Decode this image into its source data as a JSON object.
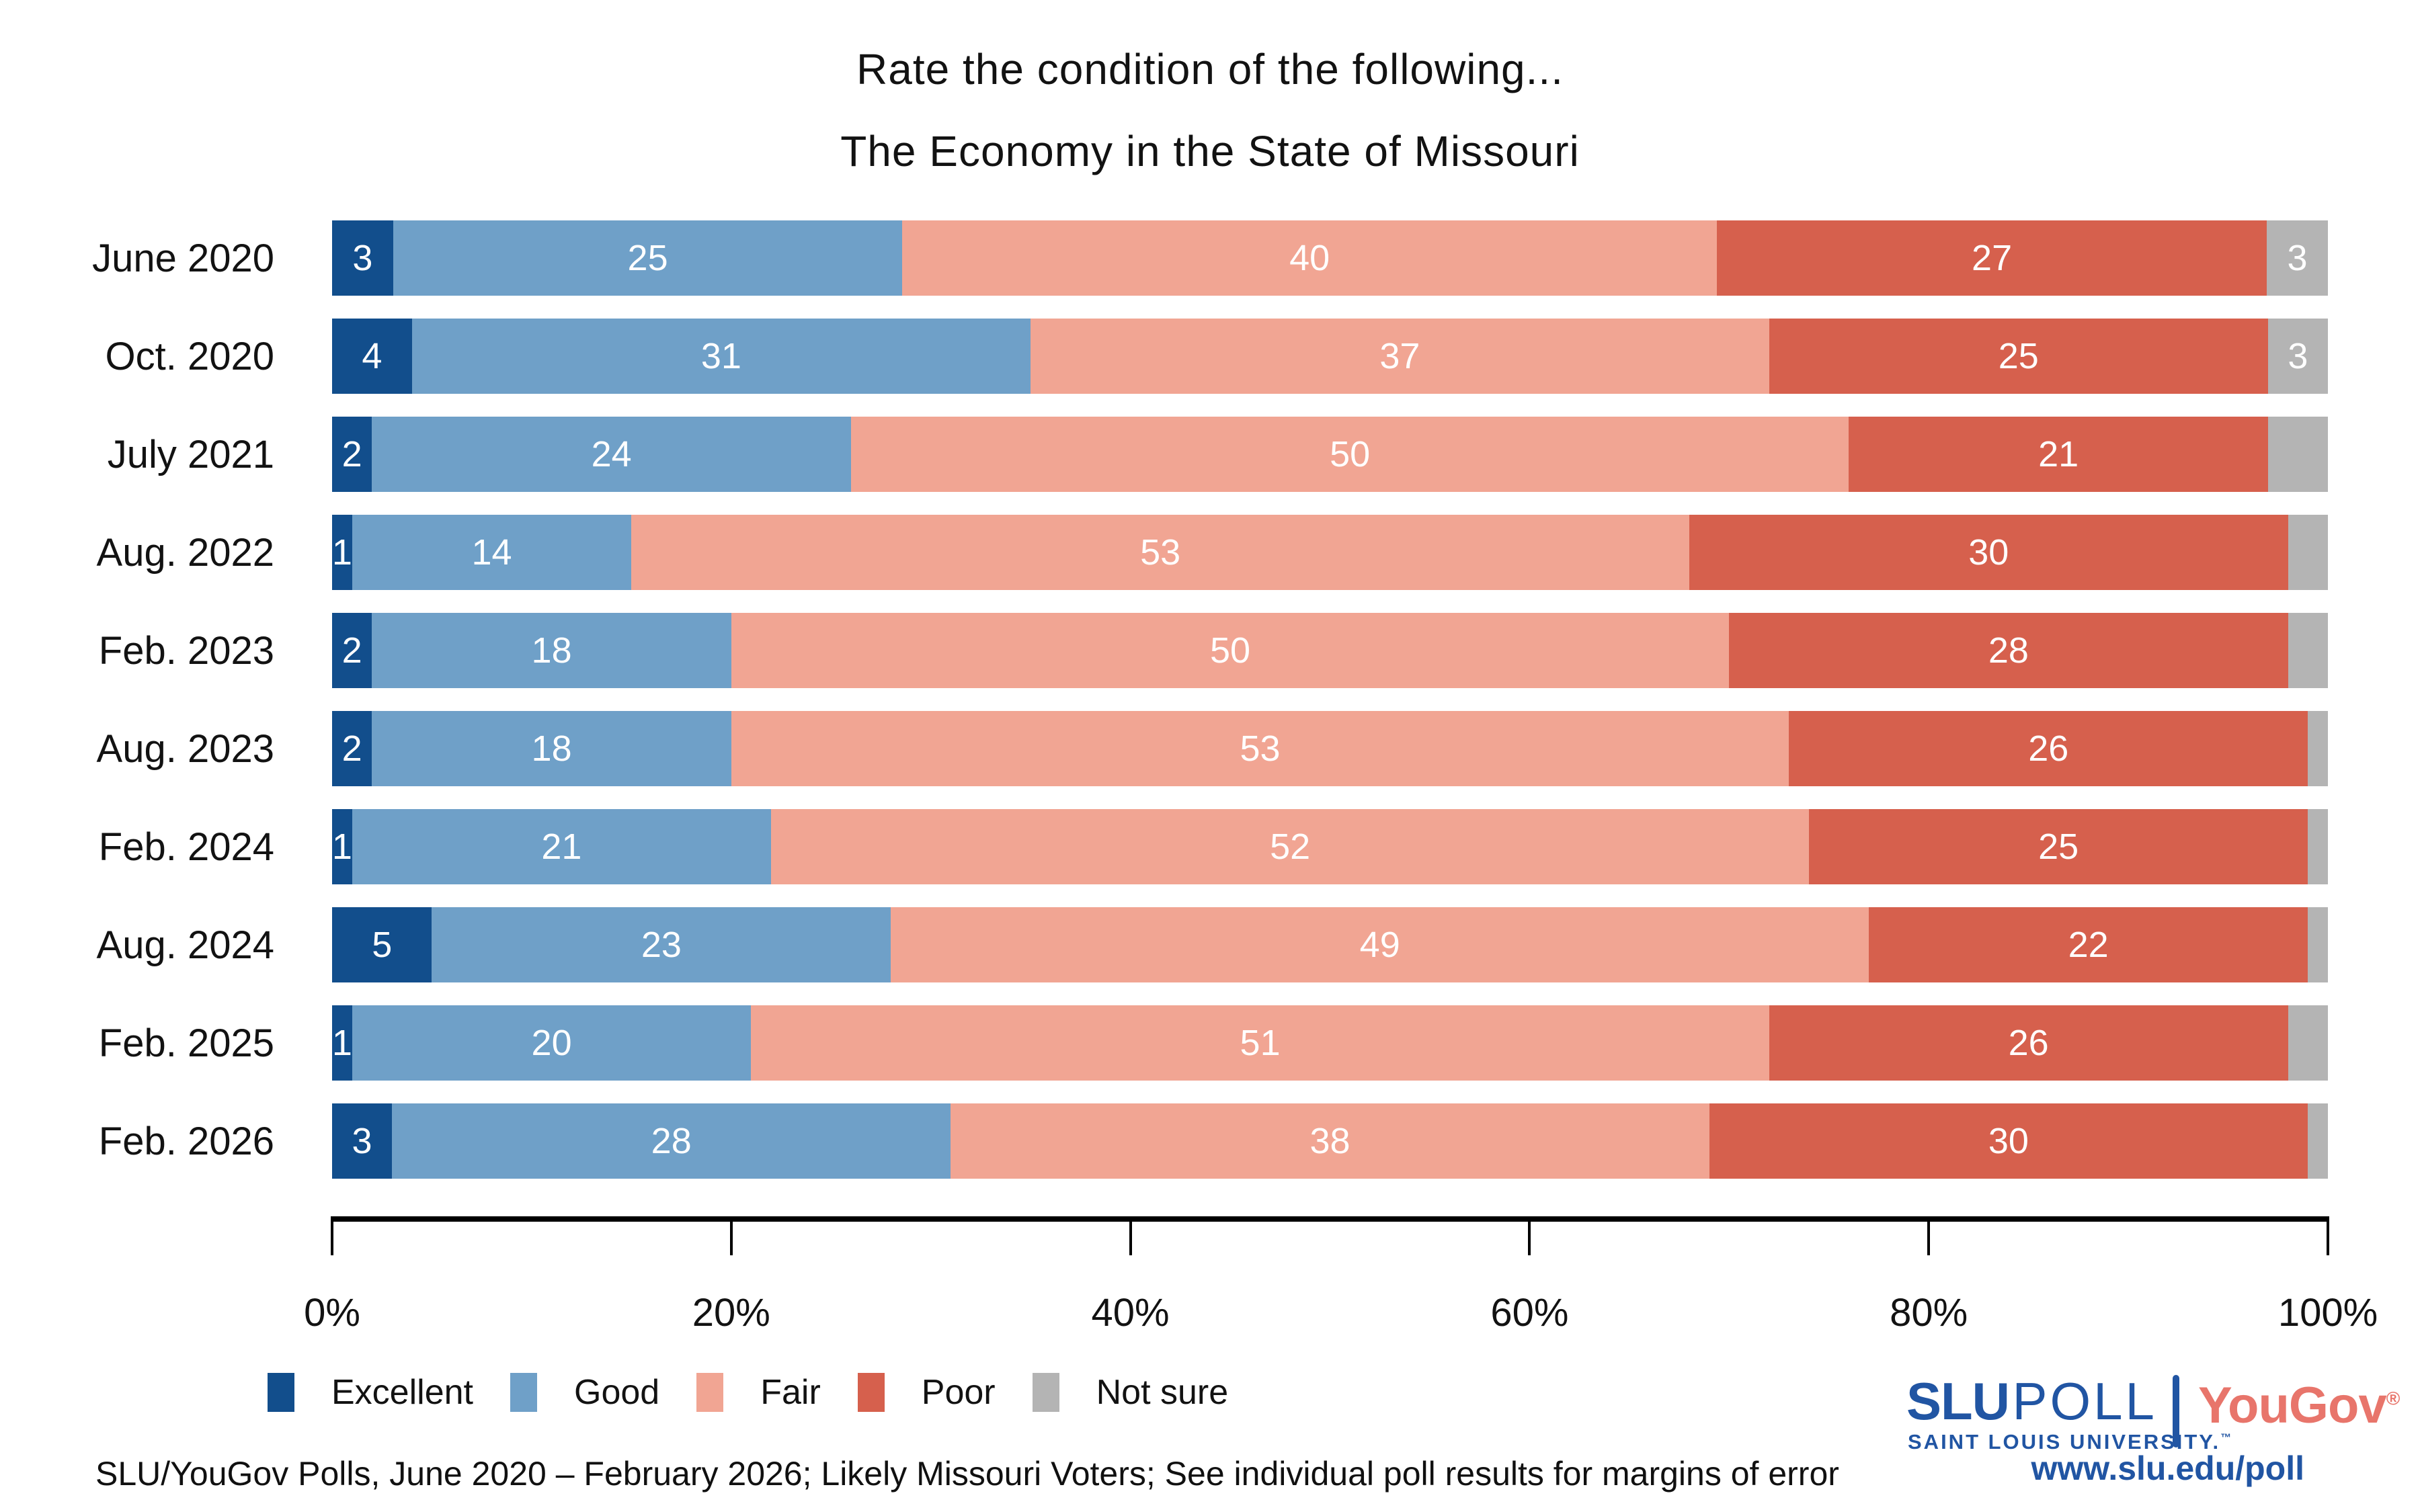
{
  "title": {
    "line1": "Rate the condition of the following...",
    "line2": "The Economy in the State of Missouri"
  },
  "chart_data": {
    "type": "bar",
    "orientation": "horizontal-stacked",
    "title": "Rate the condition of the following... The Economy in the State of Missouri",
    "categories": [
      "June 2020",
      "Oct. 2020",
      "July 2021",
      "Aug. 2022",
      "Feb. 2023",
      "Aug. 2023",
      "Feb. 2024",
      "Aug. 2024",
      "Feb. 2025",
      "Feb. 2026"
    ],
    "series": [
      {
        "name": "Excellent",
        "color": "#124E8C",
        "values": [
          3,
          4,
          2,
          1,
          2,
          2,
          1,
          5,
          1,
          3
        ],
        "labels": [
          "3",
          "4",
          "2",
          "1",
          "2",
          "2",
          "1",
          "5",
          "1",
          "3"
        ]
      },
      {
        "name": "Good",
        "color": "#6FA0C8",
        "values": [
          25,
          31,
          24,
          14,
          18,
          18,
          21,
          23,
          20,
          28
        ],
        "labels": [
          "25",
          "31",
          "24",
          "14",
          "18",
          "18",
          "21",
          "23",
          "20",
          "28"
        ]
      },
      {
        "name": "Fair",
        "color": "#F1A593",
        "values": [
          40,
          37,
          50,
          53,
          50,
          53,
          52,
          49,
          51,
          38
        ],
        "labels": [
          "40",
          "37",
          "50",
          "53",
          "50",
          "53",
          "52",
          "49",
          "51",
          "38"
        ]
      },
      {
        "name": "Poor",
        "color": "#D6604D",
        "values": [
          27,
          25,
          21,
          30,
          28,
          26,
          25,
          22,
          26,
          30
        ],
        "labels": [
          "27",
          "25",
          "21",
          "30",
          "28",
          "26",
          "25",
          "22",
          "26",
          "30"
        ]
      },
      {
        "name": "Not sure",
        "color": "#B4B4B4",
        "values": [
          3,
          3,
          3,
          2,
          2,
          1,
          1,
          1,
          2,
          1
        ],
        "labels": [
          "3",
          "3",
          "",
          "",
          "",
          "",
          "",
          "",
          "",
          ""
        ]
      }
    ],
    "x_ticks": [
      "0%",
      "20%",
      "40%",
      "60%",
      "80%",
      "100%"
    ],
    "xlim": [
      0,
      100
    ],
    "xlabel": "",
    "ylabel": "",
    "grid": false,
    "legend_position": "bottom-left",
    "value_label_color": "#ffffff"
  },
  "footer": {
    "source_note": "SLU/YouGov Polls, June 2020 – February 2026; Likely Missouri Voters; See individual poll results for margins of error"
  },
  "branding": {
    "slu": "SLU",
    "poll": "POLL",
    "university": "SAINT LOUIS UNIVERSITY.",
    "trademark": "™",
    "yougov": "YouGov",
    "registered": "®",
    "url": "www.slu.edu/poll",
    "slu_blue": "#2155A3",
    "yougov_coral": "#E8756B"
  }
}
